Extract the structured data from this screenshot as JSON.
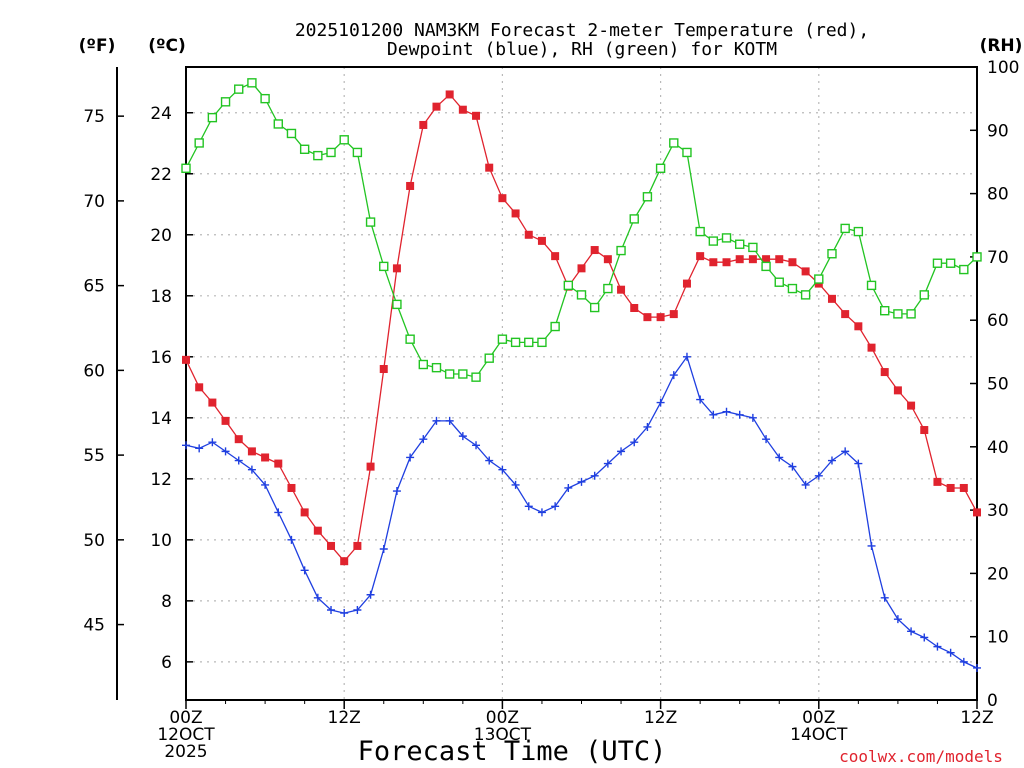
{
  "chart_data": {
    "type": "line",
    "title_line1": "2025101200 NAM3KM Forecast 2-meter Temperature (red),",
    "title_line2": "Dewpoint (blue), RH (green) for KOTM",
    "unit_f": "(ºF)",
    "unit_c": "(ºC)",
    "unit_rh": "(RH)",
    "xlabel": "Forecast Time (UTC)",
    "credit": "coolwx.com/models",
    "x_hours_range": [
      0,
      60
    ],
    "ylim_c": [
      4.75,
      25.5
    ],
    "ylim_rh": [
      0,
      100
    ],
    "x_ticks": [
      {
        "hour": 0,
        "l1": "00Z",
        "l2": "12OCT",
        "l3": "2025"
      },
      {
        "hour": 12,
        "l1": "12Z",
        "l2": "",
        "l3": ""
      },
      {
        "hour": 24,
        "l1": "00Z",
        "l2": "13OCT",
        "l3": ""
      },
      {
        "hour": 36,
        "l1": "12Z",
        "l2": "",
        "l3": ""
      },
      {
        "hour": 48,
        "l1": "00Z",
        "l2": "14OCT",
        "l3": ""
      },
      {
        "hour": 60,
        "l1": "12Z",
        "l2": "",
        "l3": ""
      }
    ],
    "y_ticks_c": [
      "6",
      "8",
      "10",
      "12",
      "14",
      "16",
      "18",
      "20",
      "22",
      "24"
    ],
    "y_ticks_f": [
      "45",
      "50",
      "55",
      "60",
      "65",
      "70",
      "75"
    ],
    "y_ticks_rh": [
      "0",
      "10",
      "20",
      "30",
      "40",
      "50",
      "60",
      "70",
      "80",
      "90",
      "100"
    ],
    "series": [
      {
        "name": "Temperature (°C)",
        "color": "#e0232e",
        "marker": "filled-square",
        "axis": "c",
        "values": [
          [
            0,
            15.9
          ],
          [
            1,
            15.0
          ],
          [
            2,
            14.5
          ],
          [
            3,
            13.9
          ],
          [
            4,
            13.3
          ],
          [
            5,
            12.9
          ],
          [
            6,
            12.7
          ],
          [
            7,
            12.5
          ],
          [
            8,
            11.7
          ],
          [
            9,
            10.9
          ],
          [
            10,
            10.3
          ],
          [
            11,
            9.8
          ],
          [
            12,
            9.3
          ],
          [
            13,
            9.8
          ],
          [
            14,
            12.4
          ],
          [
            15,
            15.6
          ],
          [
            16,
            18.9
          ],
          [
            17,
            21.6
          ],
          [
            18,
            23.6
          ],
          [
            19,
            24.2
          ],
          [
            20,
            24.6
          ],
          [
            21,
            24.1
          ],
          [
            22,
            23.9
          ],
          [
            23,
            22.2
          ],
          [
            24,
            21.2
          ],
          [
            25,
            20.7
          ],
          [
            26,
            20.0
          ],
          [
            27,
            19.8
          ],
          [
            28,
            19.3
          ],
          [
            29,
            18.3
          ],
          [
            30,
            18.9
          ],
          [
            31,
            19.5
          ],
          [
            32,
            19.2
          ],
          [
            33,
            18.2
          ],
          [
            34,
            17.6
          ],
          [
            35,
            17.3
          ],
          [
            36,
            17.3
          ],
          [
            37,
            17.4
          ],
          [
            38,
            18.4
          ],
          [
            39,
            19.3
          ],
          [
            40,
            19.1
          ],
          [
            41,
            19.1
          ],
          [
            42,
            19.2
          ],
          [
            43,
            19.2
          ],
          [
            44,
            19.2
          ],
          [
            45,
            19.2
          ],
          [
            46,
            19.1
          ],
          [
            47,
            18.8
          ],
          [
            48,
            18.4
          ],
          [
            49,
            17.9
          ],
          [
            50,
            17.4
          ],
          [
            51,
            17.0
          ],
          [
            52,
            16.3
          ],
          [
            53,
            15.5
          ],
          [
            54,
            14.9
          ],
          [
            55,
            14.4
          ],
          [
            56,
            13.6
          ],
          [
            57,
            11.9
          ],
          [
            58,
            11.7
          ],
          [
            59,
            11.7
          ],
          [
            60,
            10.9
          ]
        ]
      },
      {
        "name": "Dewpoint (°C)",
        "color": "#1f3fe0",
        "marker": "plus",
        "axis": "c",
        "values": [
          [
            0,
            13.1
          ],
          [
            1,
            13.0
          ],
          [
            2,
            13.2
          ],
          [
            3,
            12.9
          ],
          [
            4,
            12.6
          ],
          [
            5,
            12.3
          ],
          [
            6,
            11.8
          ],
          [
            7,
            10.9
          ],
          [
            8,
            10.0
          ],
          [
            9,
            9.0
          ],
          [
            10,
            8.1
          ],
          [
            11,
            7.7
          ],
          [
            12,
            7.6
          ],
          [
            13,
            7.7
          ],
          [
            14,
            8.2
          ],
          [
            15,
            9.7
          ],
          [
            16,
            11.6
          ],
          [
            17,
            12.7
          ],
          [
            18,
            13.3
          ],
          [
            19,
            13.9
          ],
          [
            20,
            13.9
          ],
          [
            21,
            13.4
          ],
          [
            22,
            13.1
          ],
          [
            23,
            12.6
          ],
          [
            24,
            12.3
          ],
          [
            25,
            11.8
          ],
          [
            26,
            11.1
          ],
          [
            27,
            10.9
          ],
          [
            28,
            11.1
          ],
          [
            29,
            11.7
          ],
          [
            30,
            11.9
          ],
          [
            31,
            12.1
          ],
          [
            32,
            12.5
          ],
          [
            33,
            12.9
          ],
          [
            34,
            13.2
          ],
          [
            35,
            13.7
          ],
          [
            36,
            14.5
          ],
          [
            37,
            15.4
          ],
          [
            38,
            16.0
          ],
          [
            39,
            14.6
          ],
          [
            40,
            14.1
          ],
          [
            41,
            14.2
          ],
          [
            42,
            14.1
          ],
          [
            43,
            14.0
          ],
          [
            44,
            13.3
          ],
          [
            45,
            12.7
          ],
          [
            46,
            12.4
          ],
          [
            47,
            11.8
          ],
          [
            48,
            12.1
          ],
          [
            49,
            12.6
          ],
          [
            50,
            12.9
          ],
          [
            51,
            12.5
          ],
          [
            52,
            9.8
          ],
          [
            53,
            8.1
          ],
          [
            54,
            7.4
          ],
          [
            55,
            7.0
          ],
          [
            56,
            6.8
          ],
          [
            57,
            6.5
          ],
          [
            58,
            6.3
          ],
          [
            59,
            6.0
          ],
          [
            60,
            5.8
          ]
        ]
      },
      {
        "name": "RH (%)",
        "color": "#22c422",
        "marker": "open-square",
        "axis": "rh",
        "values": [
          [
            0,
            84
          ],
          [
            1,
            88
          ],
          [
            2,
            92
          ],
          [
            3,
            94.5
          ],
          [
            4,
            96.5
          ],
          [
            5,
            97.5
          ],
          [
            6,
            95
          ],
          [
            7,
            91
          ],
          [
            8,
            89.5
          ],
          [
            9,
            87
          ],
          [
            10,
            86
          ],
          [
            11,
            86.5
          ],
          [
            12,
            88.5
          ],
          [
            13,
            86.5
          ],
          [
            14,
            75.5
          ],
          [
            15,
            68.5
          ],
          [
            16,
            62.5
          ],
          [
            17,
            57
          ],
          [
            18,
            53
          ],
          [
            19,
            52.5
          ],
          [
            20,
            51.5
          ],
          [
            21,
            51.5
          ],
          [
            22,
            51
          ],
          [
            23,
            54
          ],
          [
            24,
            57
          ],
          [
            25,
            56.5
          ],
          [
            26,
            56.5
          ],
          [
            27,
            56.5
          ],
          [
            28,
            59
          ],
          [
            29,
            65.5
          ],
          [
            30,
            64
          ],
          [
            31,
            62
          ],
          [
            32,
            65
          ],
          [
            33,
            71
          ],
          [
            34,
            76
          ],
          [
            35,
            79.5
          ],
          [
            36,
            84
          ],
          [
            37,
            88
          ],
          [
            38,
            86.5
          ],
          [
            39,
            74
          ],
          [
            40,
            72.5
          ],
          [
            41,
            73
          ],
          [
            42,
            72
          ],
          [
            43,
            71.5
          ],
          [
            44,
            68.5
          ],
          [
            45,
            66
          ],
          [
            46,
            65
          ],
          [
            47,
            64
          ],
          [
            48,
            66.5
          ],
          [
            49,
            70.5
          ],
          [
            50,
            74.5
          ],
          [
            51,
            74
          ],
          [
            52,
            65.5
          ],
          [
            53,
            61.5
          ],
          [
            54,
            61
          ],
          [
            55,
            61
          ],
          [
            56,
            64
          ],
          [
            57,
            69
          ],
          [
            58,
            69
          ],
          [
            59,
            68
          ],
          [
            60,
            70
          ]
        ]
      }
    ]
  }
}
